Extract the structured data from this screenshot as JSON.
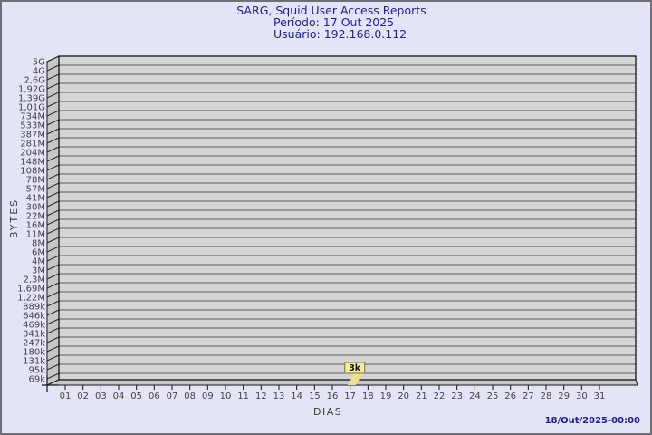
{
  "header": {
    "title": "SARG, Squid User Access Reports",
    "period": "Período: 17 Out 2025",
    "user": "Usuário: 192.168.0.112"
  },
  "footer": {
    "timestamp": "18/Out/2025-00:00"
  },
  "chart_data": {
    "type": "bar",
    "title": "SARG, Squid User Access Reports",
    "subtitle": [
      "Período: 17 Out 2025",
      "Usuário: 192.168.0.112"
    ],
    "xlabel": "DIAS",
    "ylabel": "BYTES",
    "y_scale": "log",
    "y_tick_labels": [
      "5G",
      "4G",
      "2,6G",
      "1,92G",
      "1,39G",
      "1,01G",
      "734M",
      "533M",
      "387M",
      "281M",
      "204M",
      "148M",
      "108M",
      "78M",
      "57M",
      "41M",
      "30M",
      "22M",
      "16M",
      "11M",
      "8M",
      "6M",
      "4M",
      "3M",
      "2,3M",
      "1,69M",
      "1,22M",
      "889k",
      "646k",
      "469k",
      "341k",
      "247k",
      "180k",
      "131k",
      "95k",
      "69k"
    ],
    "y_min_tick_bytes": 69000,
    "y_max_tick_bytes": 5000000000,
    "categories": [
      "01",
      "02",
      "03",
      "04",
      "05",
      "06",
      "07",
      "08",
      "09",
      "10",
      "11",
      "12",
      "13",
      "14",
      "15",
      "16",
      "17",
      "18",
      "19",
      "20",
      "21",
      "22",
      "23",
      "24",
      "25",
      "26",
      "27",
      "28",
      "29",
      "30",
      "31"
    ],
    "values": [
      null,
      null,
      null,
      null,
      null,
      null,
      null,
      null,
      null,
      null,
      null,
      null,
      null,
      null,
      null,
      null,
      3000,
      null,
      null,
      null,
      null,
      null,
      null,
      null,
      null,
      null,
      null,
      null,
      null,
      null,
      null
    ],
    "annotations": [
      {
        "category": "17",
        "text": "3k",
        "value_bytes": 3000
      }
    ],
    "legend": null,
    "grid": "horizontal",
    "colors": {
      "background": "#e4e4f7",
      "plot_face": "#d5d5d5",
      "plot_side": "#c7c7c7",
      "gridline": "#5c5c5c",
      "frame": "#141414",
      "tick_text": "#454545",
      "title_text": "#1e1e9c",
      "bar_fill": "#ede08f",
      "annotation_fill": "#f2eda9",
      "annotation_border": "#8f8f40",
      "annotation_text": "#141414"
    }
  }
}
